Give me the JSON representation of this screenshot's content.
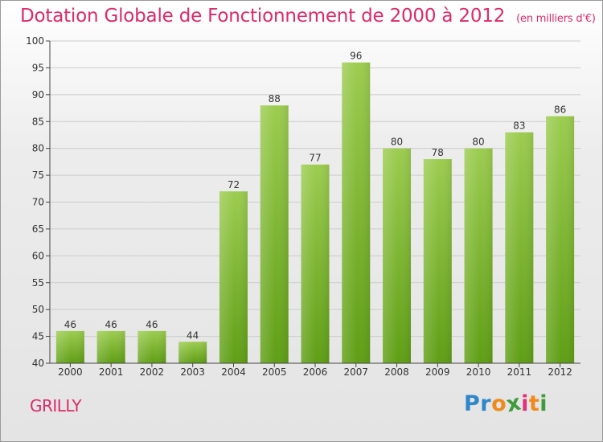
{
  "header": {
    "title": "Dotation Globale de Fonctionnement de 2000 à 2012",
    "subtitle": "(en milliers d'€)"
  },
  "footer": {
    "commune": "GRILLY",
    "logo_text": "Proxiti",
    "logo_letters": [
      {
        "char": "P",
        "color": "#2f86c9"
      },
      {
        "char": "r",
        "color": "#2f86c9"
      },
      {
        "char": "o",
        "color": "#f08a1c"
      },
      {
        "char": "x",
        "color": "#3e9c3a"
      },
      {
        "char": "i",
        "color": "#e02f7c"
      },
      {
        "char": "t",
        "color": "#f08a1c"
      },
      {
        "char": "i",
        "color": "#3e9c3a"
      }
    ]
  },
  "chart_data": {
    "type": "bar",
    "title": "Dotation Globale de Fonctionnement de 2000 à 2012",
    "subtitle": "(en milliers d'€)",
    "categories": [
      "2000",
      "2001",
      "2002",
      "2003",
      "2004",
      "2005",
      "2006",
      "2007",
      "2008",
      "2009",
      "2010",
      "2011",
      "2012"
    ],
    "values": [
      46,
      46,
      46,
      44,
      72,
      88,
      77,
      96,
      80,
      78,
      80,
      83,
      86
    ],
    "ylim": [
      40,
      100
    ],
    "yticks": [
      40,
      45,
      50,
      55,
      60,
      65,
      70,
      75,
      80,
      85,
      90,
      95,
      100
    ],
    "grid": true,
    "data_labels": true,
    "colors": {
      "bar_top": "#9ccc50",
      "bar_bottom": "#5f9e15",
      "grid": "#cccccc",
      "axis": "#444444",
      "text": "#333333"
    }
  }
}
